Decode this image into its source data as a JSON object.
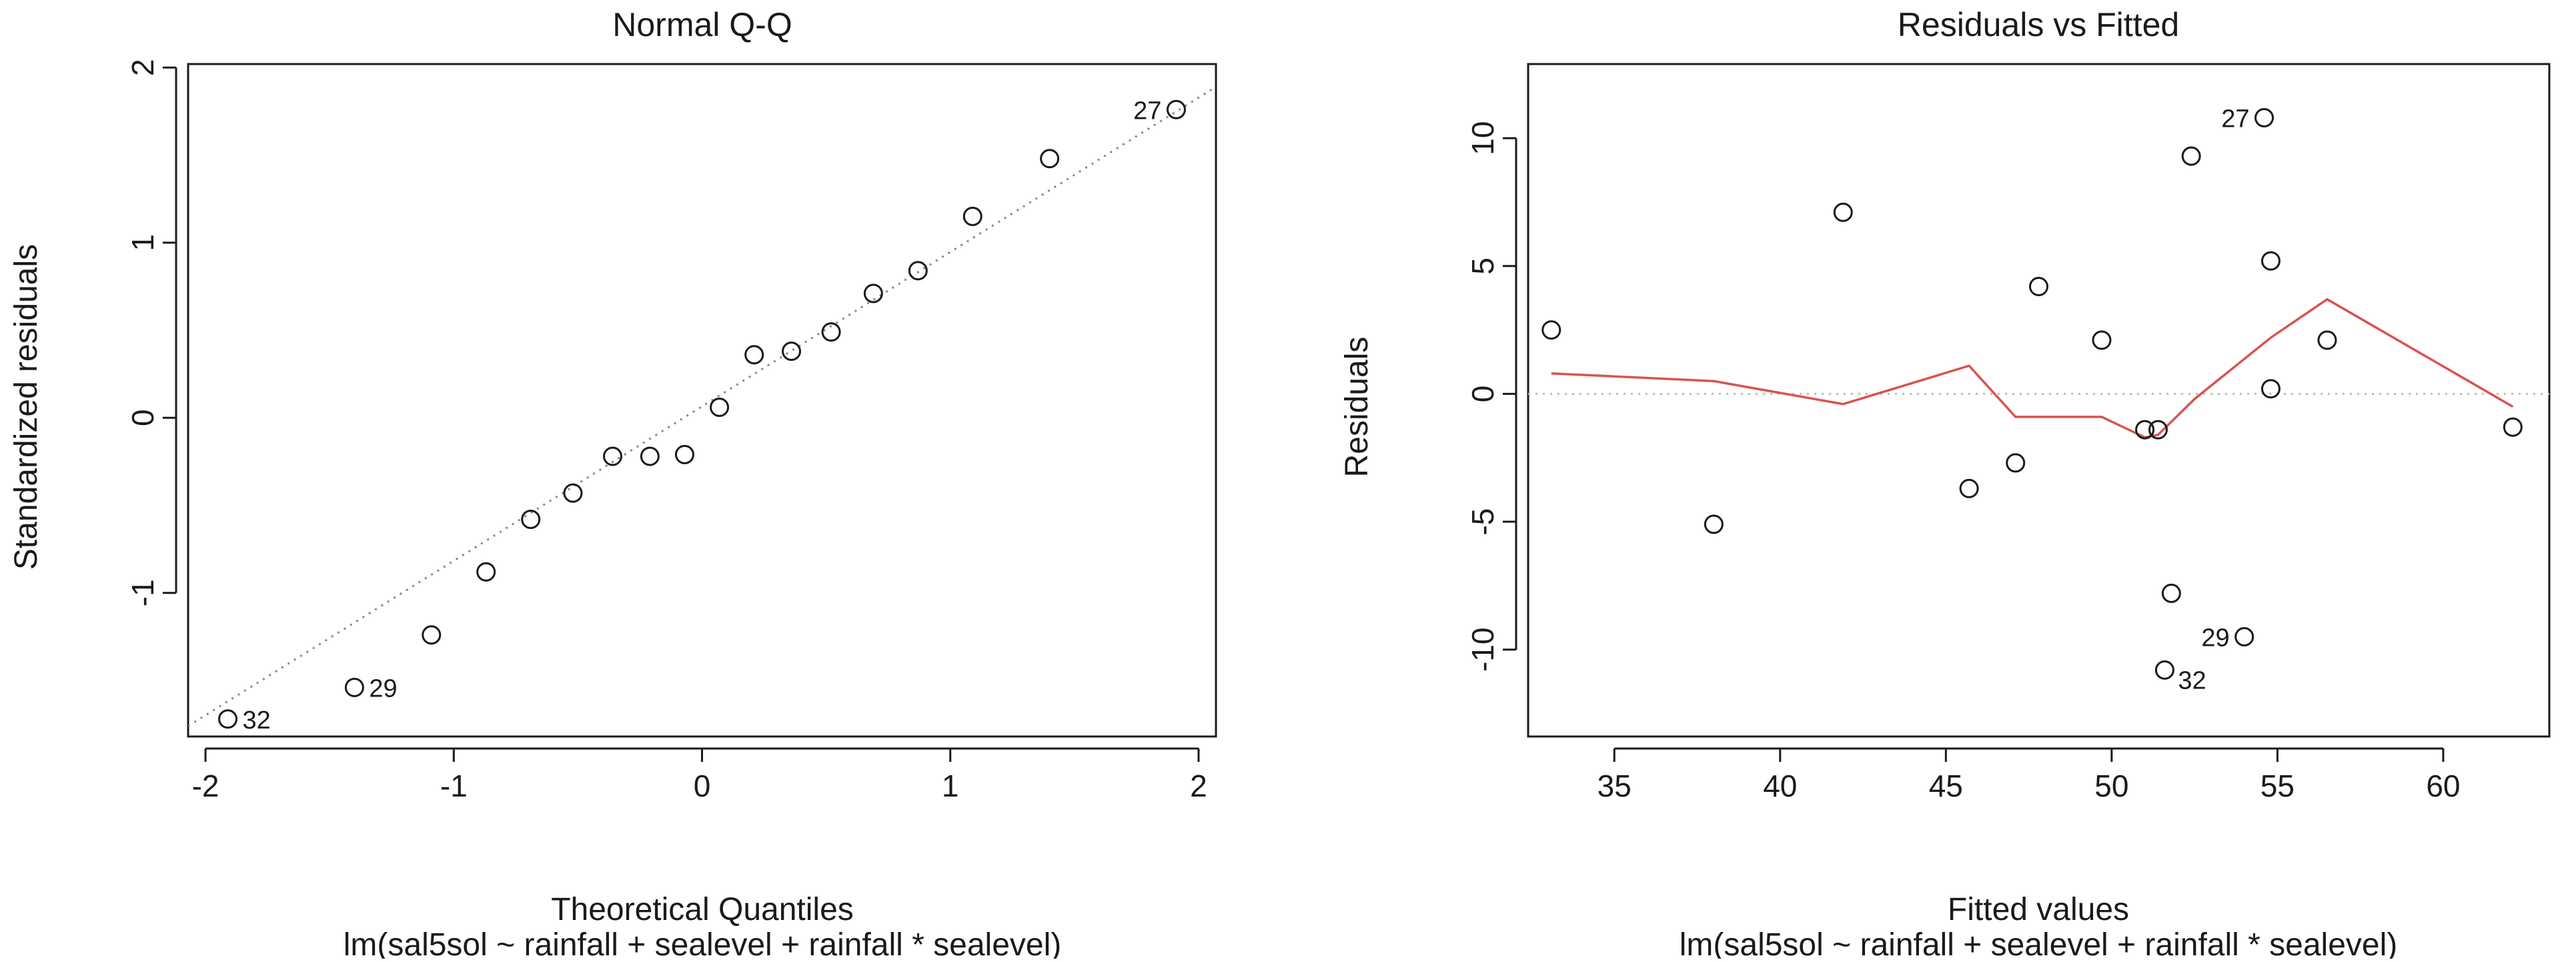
{
  "chart_data": [
    {
      "type": "scatter",
      "title": "Normal Q-Q",
      "xlabel": "Theoretical Quantiles",
      "ylabel": "Standardized residuals",
      "subtitle": "lm(sal5sol ~ rainfall + sealevel + rainfall * sealevel)",
      "xlim": [
        -2.07,
        2.07
      ],
      "ylim": [
        -1.82,
        2.02
      ],
      "xticks": [
        -2,
        -1,
        0,
        1,
        2
      ],
      "yticks": [
        -1,
        0,
        1,
        2
      ],
      "xtick_labels": [
        "-2",
        "-1",
        "0",
        "1",
        "2"
      ],
      "ytick_labels": [
        "-1",
        "0",
        "1",
        "2"
      ],
      "points": [
        {
          "x": -1.91,
          "y": -1.72,
          "label": "32"
        },
        {
          "x": -1.4,
          "y": -1.54,
          "label": "29"
        },
        {
          "x": -1.09,
          "y": -1.24
        },
        {
          "x": -0.87,
          "y": -0.88
        },
        {
          "x": -0.69,
          "y": -0.58
        },
        {
          "x": -0.52,
          "y": -0.43
        },
        {
          "x": -0.36,
          "y": -0.22
        },
        {
          "x": -0.21,
          "y": -0.22
        },
        {
          "x": -0.07,
          "y": -0.21
        },
        {
          "x": 0.07,
          "y": 0.06
        },
        {
          "x": 0.21,
          "y": 0.36
        },
        {
          "x": 0.36,
          "y": 0.38
        },
        {
          "x": 0.52,
          "y": 0.49
        },
        {
          "x": 0.69,
          "y": 0.71
        },
        {
          "x": 0.87,
          "y": 0.84
        },
        {
          "x": 1.09,
          "y": 1.15
        },
        {
          "x": 1.4,
          "y": 1.48
        },
        {
          "x": 1.91,
          "y": 1.76,
          "label": "27"
        }
      ],
      "reference_line": {
        "x": [
          -2.07,
          2.07
        ],
        "y": [
          -1.76,
          1.89
        ],
        "style": "dotted",
        "color": "#888888"
      },
      "grid": false
    },
    {
      "type": "scatter",
      "title": "Residuals vs Fitted",
      "xlabel": "Fitted values",
      "ylabel": "Residuals",
      "subtitle": "lm(sal5sol ~ rainfall + sealevel + rainfall * sealevel)",
      "xlim": [
        32.4,
        63.2
      ],
      "ylim": [
        -13.4,
        12.9
      ],
      "xticks": [
        35,
        40,
        45,
        50,
        55,
        60
      ],
      "yticks": [
        -10,
        -5,
        0,
        5,
        10
      ],
      "xtick_labels": [
        "35",
        "40",
        "45",
        "50",
        "55",
        "60"
      ],
      "ytick_labels": [
        "-10",
        "-5",
        "0",
        "5",
        "10"
      ],
      "points": [
        {
          "x": 33.1,
          "y": 2.5
        },
        {
          "x": 38.0,
          "y": -5.1
        },
        {
          "x": 41.9,
          "y": 7.1
        },
        {
          "x": 45.7,
          "y": -3.7
        },
        {
          "x": 47.1,
          "y": -2.7
        },
        {
          "x": 47.8,
          "y": 4.2
        },
        {
          "x": 49.7,
          "y": 2.1
        },
        {
          "x": 51.0,
          "y": -1.4
        },
        {
          "x": 51.4,
          "y": -1.4
        },
        {
          "x": 51.6,
          "y": -10.8,
          "label": "32"
        },
        {
          "x": 51.8,
          "y": -7.8
        },
        {
          "x": 52.4,
          "y": 9.3
        },
        {
          "x": 54.0,
          "y": -9.5,
          "label": "29"
        },
        {
          "x": 54.6,
          "y": 10.8,
          "label": "27"
        },
        {
          "x": 54.8,
          "y": 5.2
        },
        {
          "x": 54.8,
          "y": 0.2
        },
        {
          "x": 56.5,
          "y": 2.1
        },
        {
          "x": 62.1,
          "y": -1.3
        }
      ],
      "smoother": {
        "color": "#d9534f",
        "x": [
          33.1,
          38.0,
          41.9,
          45.7,
          47.1,
          49.7,
          51.0,
          51.4,
          52.5,
          54.8,
          56.5,
          62.1
        ],
        "y": [
          0.8,
          0.5,
          -0.4,
          1.1,
          -0.9,
          -0.9,
          -1.7,
          -1.6,
          -0.2,
          2.2,
          3.7,
          -0.5
        ]
      },
      "zero_line": {
        "y": 0,
        "style": "dotted",
        "color": "#bbbbbb"
      },
      "grid": false
    }
  ]
}
